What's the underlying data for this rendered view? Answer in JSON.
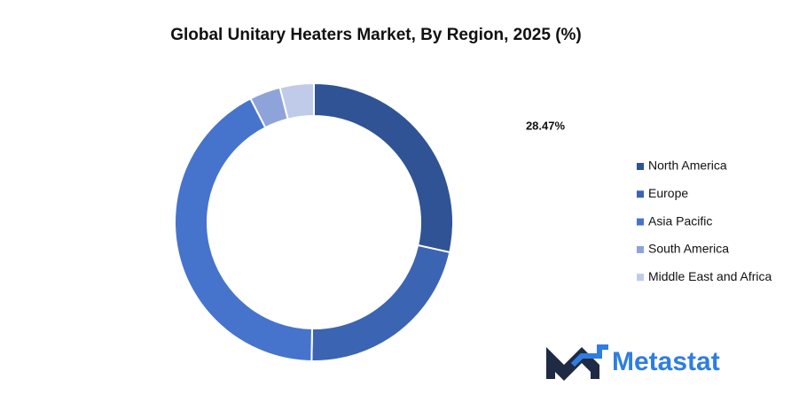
{
  "chart_data": {
    "type": "donut",
    "title": "Global Unitary Heaters Market, By Region, 2025 (%)",
    "categories": [
      "North America",
      "Europe",
      "Asia Pacific",
      "South America",
      "Middle East and Africa"
    ],
    "values": [
      28.47,
      21.8,
      42.2,
      3.6,
      3.93
    ],
    "value_labels": [
      "28.47%",
      null,
      null,
      null,
      null
    ],
    "colors": [
      "#2f5395",
      "#3b64b3",
      "#4674cc",
      "#8ea3d9",
      "#c0cbe9"
    ],
    "legend": "right"
  },
  "logo": {
    "text": "Metastat"
  }
}
